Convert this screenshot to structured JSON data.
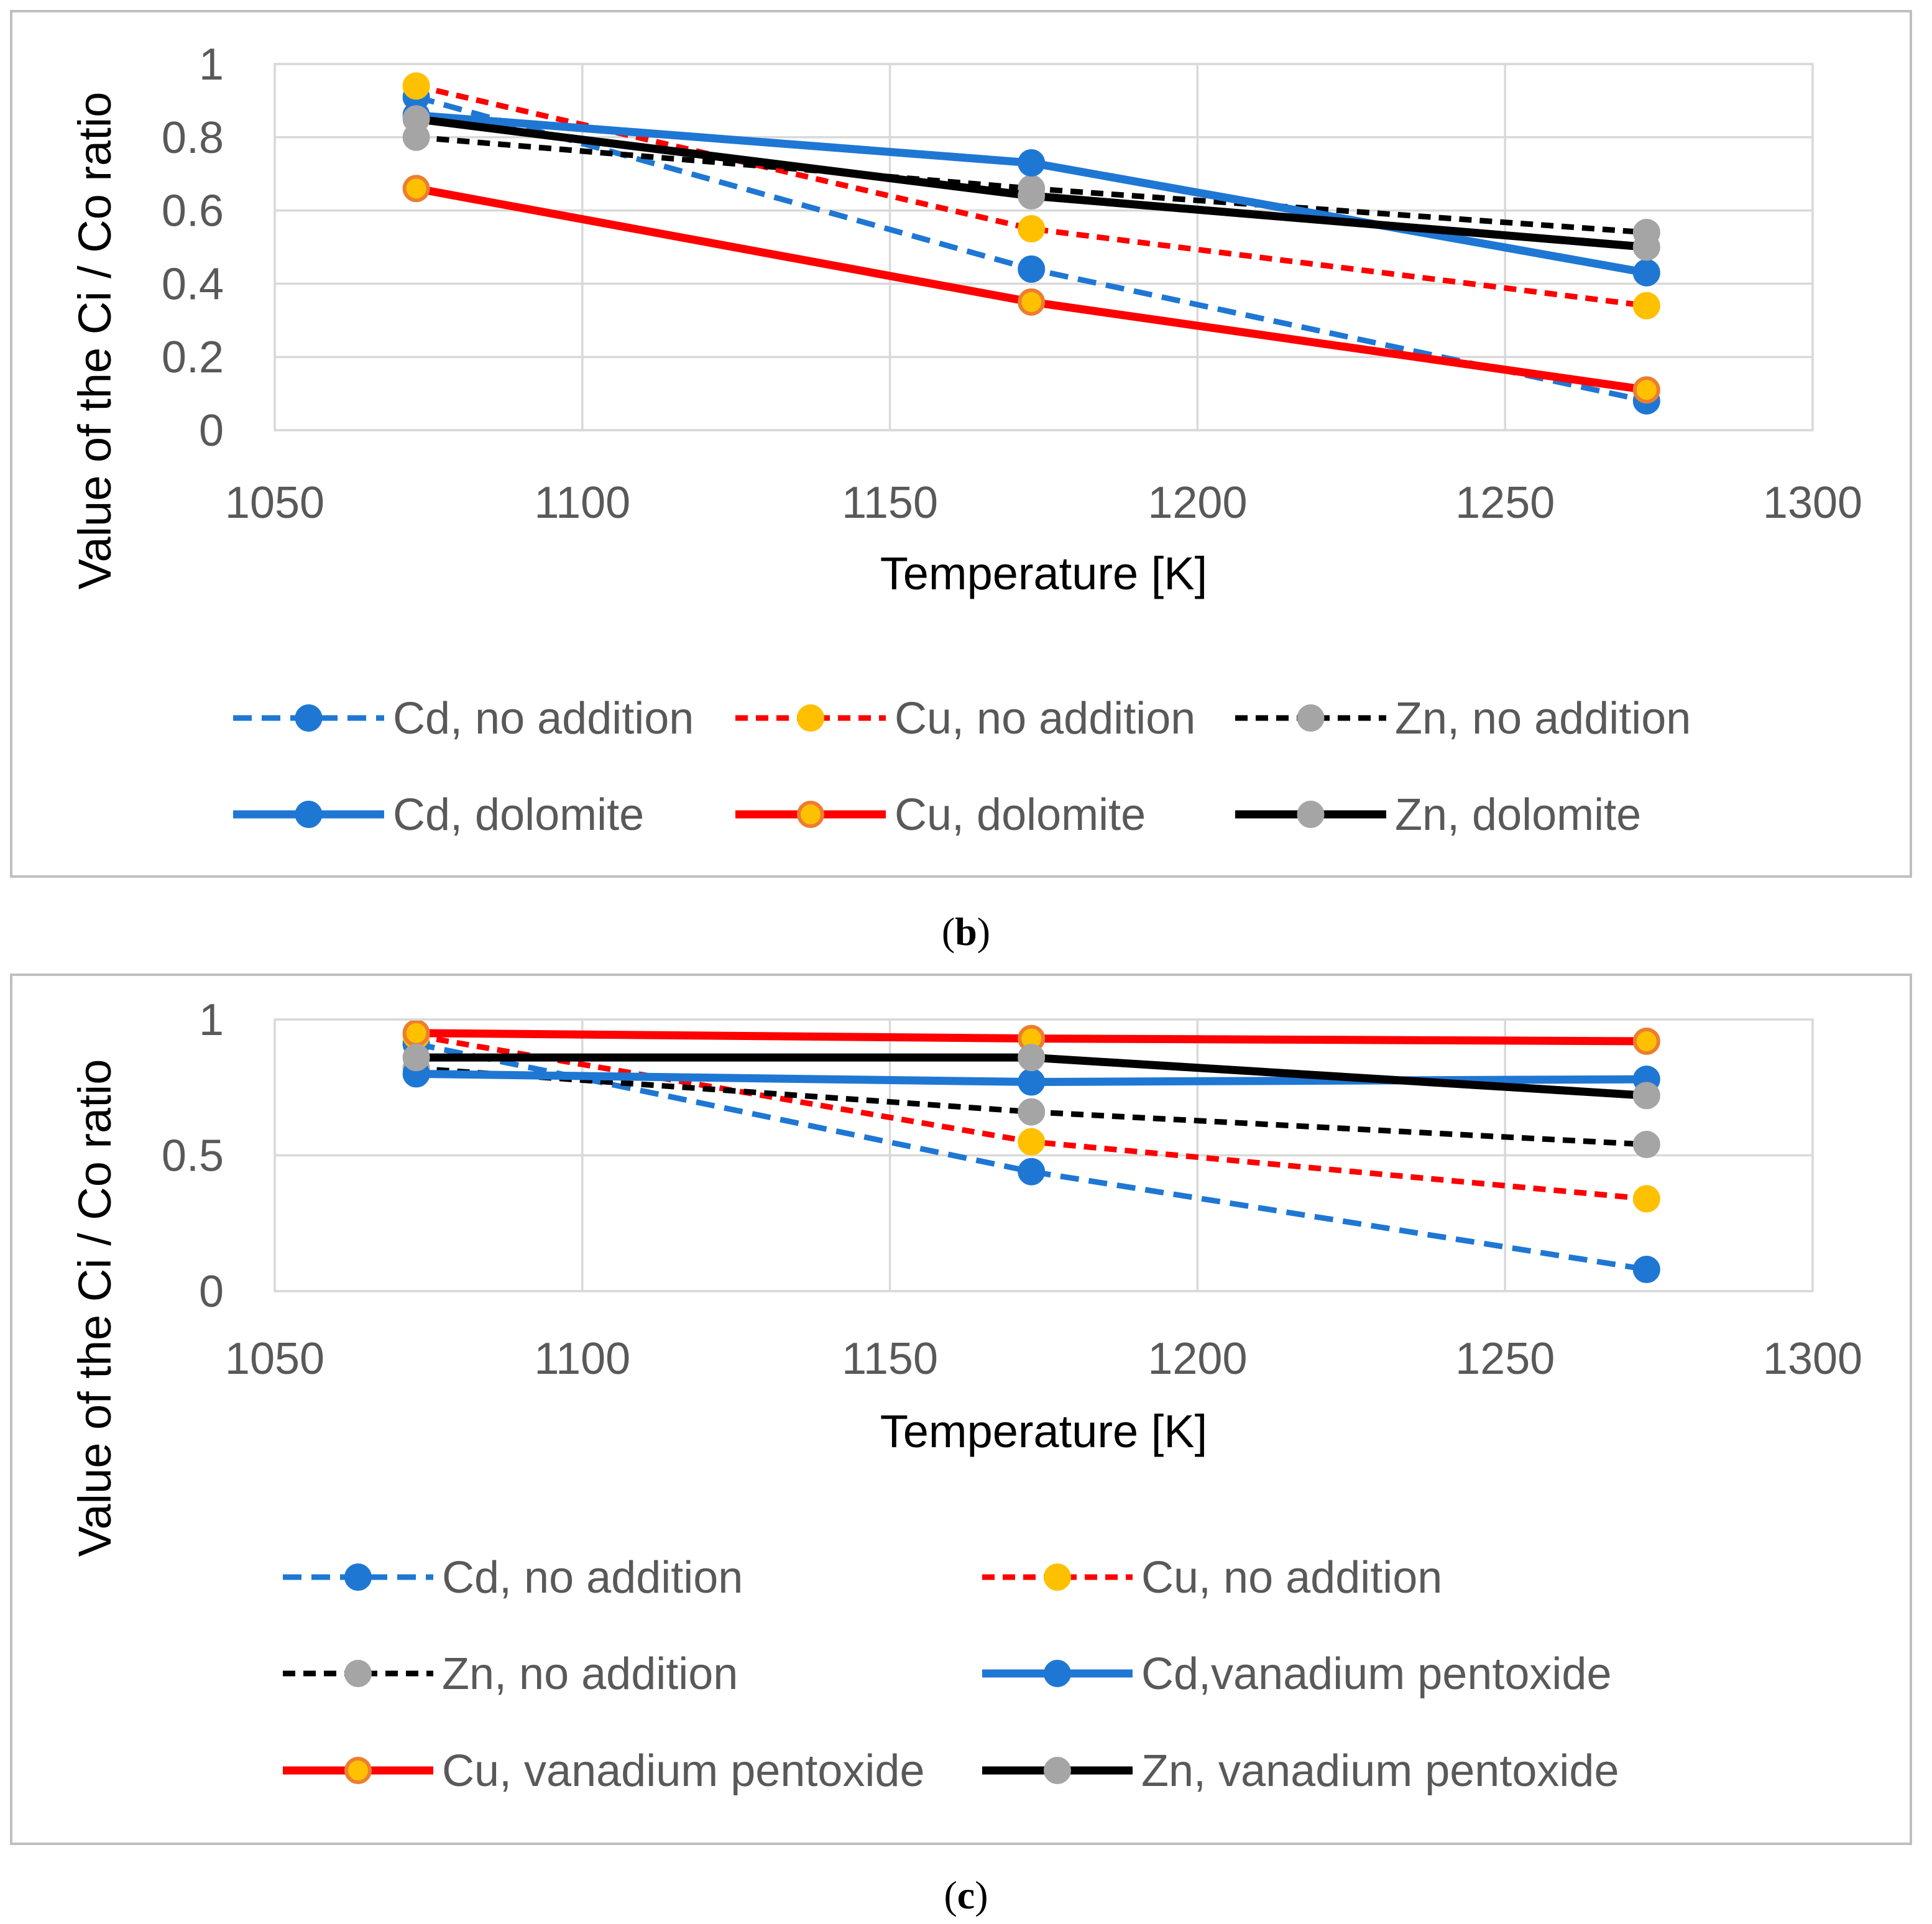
{
  "colors": {
    "blue": "#1f77d4",
    "red": "#ff0000",
    "black": "#000000",
    "yellow": "#ffc000",
    "gray": "#a5a5a5",
    "orange_edge": "#ed7d31",
    "grid": "#d9d9d9",
    "panel_border": "#bfbfbf"
  },
  "chart_data": [
    {
      "type": "line",
      "panel": "b",
      "caption": {
        "open": "(",
        "letter": "b",
        "close": ")"
      },
      "xlabel": "Temperature [K]",
      "ylabel": "Value of the Ci / Co ratio",
      "xlim": [
        1050,
        1300
      ],
      "ylim": [
        0,
        1
      ],
      "xticks": [
        1050,
        1100,
        1150,
        1200,
        1250,
        1300
      ],
      "yticks": [
        0,
        0.2,
        0.4,
        0.6,
        0.8,
        1
      ],
      "ytick_labels": [
        "0",
        "0.2",
        "0.4",
        "0.6",
        "0.8",
        "1"
      ],
      "grid": true,
      "legend_position": "bottom",
      "x": [
        1073,
        1173,
        1273
      ],
      "series": [
        {
          "name": "Cd, no addition",
          "values": [
            0.91,
            0.44,
            0.08
          ],
          "line": "blue",
          "dash": "long",
          "marker_fill": "blue",
          "marker_edge": "blue"
        },
        {
          "name": "Cu, no addition",
          "values": [
            0.94,
            0.55,
            0.34
          ],
          "line": "red",
          "dash": "short",
          "marker_fill": "yellow",
          "marker_edge": "yellow"
        },
        {
          "name": "Zn, no addition",
          "values": [
            0.8,
            0.66,
            0.54
          ],
          "line": "black",
          "dash": "short",
          "marker_fill": "gray",
          "marker_edge": "gray"
        },
        {
          "name": "Cd, dolomite",
          "values": [
            0.86,
            0.73,
            0.43
          ],
          "line": "blue",
          "dash": "solid",
          "marker_fill": "blue",
          "marker_edge": "blue"
        },
        {
          "name": "Cu, dolomite",
          "values": [
            0.66,
            0.35,
            0.11
          ],
          "line": "red",
          "dash": "solid",
          "marker_fill": "yellow",
          "marker_edge": "orange_edge"
        },
        {
          "name": "Zn, dolomite",
          "values": [
            0.85,
            0.64,
            0.5
          ],
          "line": "black",
          "dash": "solid",
          "marker_fill": "gray",
          "marker_edge": "gray"
        }
      ]
    },
    {
      "type": "line",
      "panel": "c",
      "caption": {
        "open": "(",
        "letter": "c",
        "close": ")"
      },
      "xlabel": "Temperature [K]",
      "ylabel": "Value of the Ci / Co ratio",
      "xlim": [
        1050,
        1300
      ],
      "ylim": [
        0,
        1
      ],
      "xticks": [
        1050,
        1100,
        1150,
        1200,
        1250,
        1300
      ],
      "yticks": [
        0,
        0.5,
        1
      ],
      "ytick_labels": [
        "0",
        "0.5",
        "1"
      ],
      "grid": true,
      "legend_position": "bottom",
      "x": [
        1073,
        1173,
        1273
      ],
      "series": [
        {
          "name": "Cd, no addition",
          "values": [
            0.91,
            0.44,
            0.08
          ],
          "line": "blue",
          "dash": "long",
          "marker_fill": "blue",
          "marker_edge": "blue"
        },
        {
          "name": "Cu, no addition",
          "values": [
            0.94,
            0.55,
            0.34
          ],
          "line": "red",
          "dash": "short",
          "marker_fill": "yellow",
          "marker_edge": "yellow"
        },
        {
          "name": "Zn, no addition",
          "values": [
            0.82,
            0.66,
            0.54
          ],
          "line": "black",
          "dash": "short",
          "marker_fill": "gray",
          "marker_edge": "gray"
        },
        {
          "name": "Cd,vanadium pentoxide",
          "values": [
            0.8,
            0.77,
            0.78
          ],
          "line": "blue",
          "dash": "solid",
          "marker_fill": "blue",
          "marker_edge": "blue"
        },
        {
          "name": "Cu, vanadium pentoxide",
          "values": [
            0.95,
            0.93,
            0.92
          ],
          "line": "red",
          "dash": "solid",
          "marker_fill": "yellow",
          "marker_edge": "orange_edge"
        },
        {
          "name": "Zn, vanadium pentoxide",
          "values": [
            0.86,
            0.86,
            0.72
          ],
          "line": "black",
          "dash": "solid",
          "marker_fill": "gray",
          "marker_edge": "gray"
        }
      ]
    }
  ]
}
